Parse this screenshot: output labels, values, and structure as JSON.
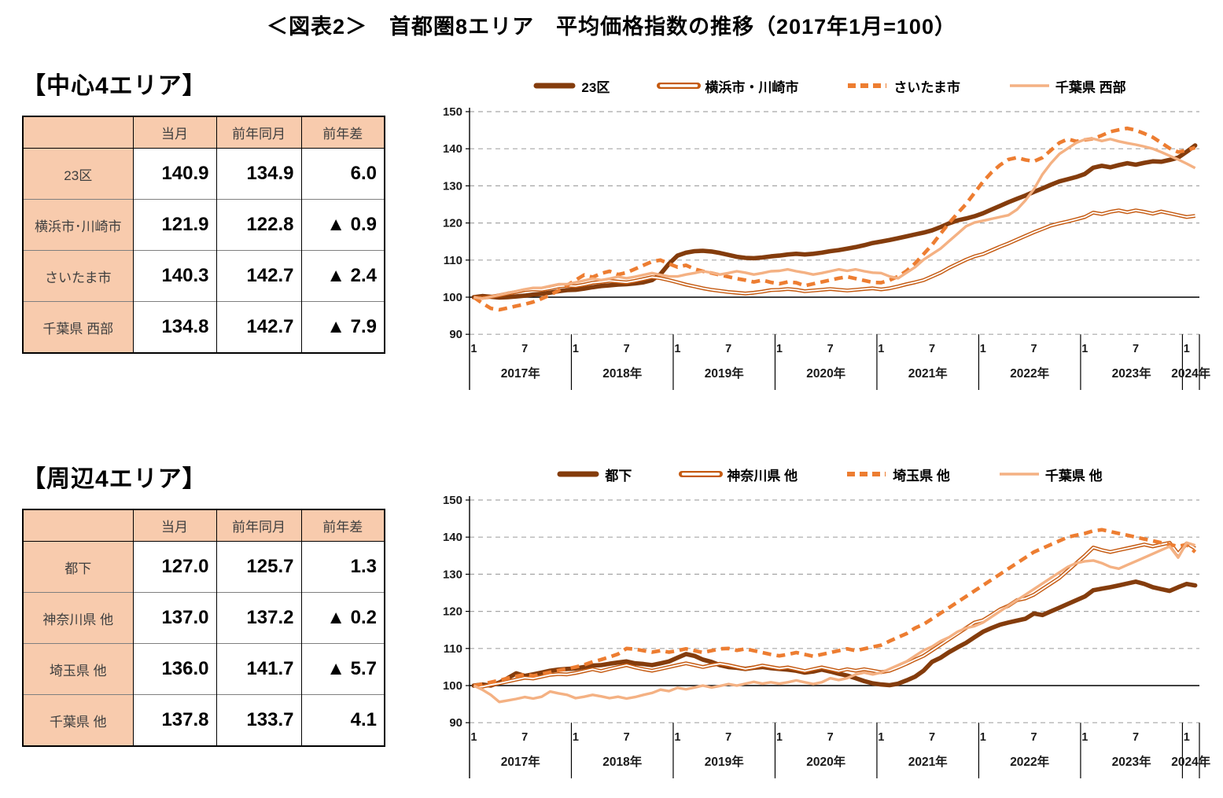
{
  "title": "＜図表2＞　首都圏8エリア　平均価格指数の推移（2017年1月=100）",
  "colors": {
    "dark_brown": "#843C0C",
    "mid_orange": "#C55A11",
    "bright_orange": "#ED7D31",
    "light_peach": "#F4B183",
    "table_header_bg": "#F8CBAD",
    "gridline": "#A6A6A6"
  },
  "sections": [
    {
      "heading": "【中心4エリア】",
      "table": {
        "headers": [
          "",
          "当月",
          "前年同月",
          "前年差"
        ],
        "rows": [
          {
            "label": "23区",
            "current": "140.9",
            "prev_year": "134.9",
            "diff": "6.0"
          },
          {
            "label": "横浜市･川崎市",
            "current": "121.9",
            "prev_year": "122.8",
            "diff": "▲ 0.9"
          },
          {
            "label": "さいたま市",
            "current": "140.3",
            "prev_year": "142.7",
            "diff": "▲ 2.4"
          },
          {
            "label": "千葉県 西部",
            "current": "134.8",
            "prev_year": "142.7",
            "diff": "▲ 7.9"
          }
        ]
      }
    },
    {
      "heading": "【周辺4エリア】",
      "table": {
        "headers": [
          "",
          "当月",
          "前年同月",
          "前年差"
        ],
        "rows": [
          {
            "label": "都下",
            "current": "127.0",
            "prev_year": "125.7",
            "diff": "1.3"
          },
          {
            "label": "神奈川県 他",
            "current": "137.0",
            "prev_year": "137.2",
            "diff": "▲ 0.2"
          },
          {
            "label": "埼玉県 他",
            "current": "136.0",
            "prev_year": "141.7",
            "diff": "▲ 5.7"
          },
          {
            "label": "千葉県 他",
            "current": "137.8",
            "prev_year": "133.7",
            "diff": "4.1"
          }
        ]
      }
    }
  ],
  "chart_data": [
    {
      "type": "line",
      "label": "中心4エリア 平均価格指数の推移",
      "x_unit": "month",
      "x_start": "2017-01",
      "x_end": "2024-02",
      "ylim": [
        90,
        150
      ],
      "yticks": [
        90,
        100,
        110,
        120,
        130,
        140,
        150
      ],
      "baseline": 100,
      "grid": "dashed-horizontal",
      "legend_position": "top",
      "month_tick_labels": [
        "1",
        "7"
      ],
      "year_labels": [
        "2017年",
        "2018年",
        "2019年",
        "2020年",
        "2021年",
        "2022年",
        "2023年",
        "2024年"
      ],
      "series": [
        {
          "name": "23区",
          "color": "#843C0C",
          "style": "thick",
          "values": [
            100,
            100.3,
            100.1,
            99.9,
            100,
            100.2,
            100.4,
            100.7,
            100.9,
            101.2,
            101.6,
            101.9,
            102,
            102.3,
            102.7,
            103,
            103.2,
            103.4,
            103.5,
            103.7,
            104,
            104.6,
            106.2,
            109,
            111.2,
            112,
            112.4,
            112.5,
            112.3,
            111.9,
            111.4,
            110.9,
            110.6,
            110.5,
            110.7,
            111,
            111.2,
            111.5,
            111.7,
            111.5,
            111.7,
            112,
            112.4,
            112.7,
            113.1,
            113.5,
            114,
            114.6,
            115,
            115.4,
            115.9,
            116.4,
            116.9,
            117.4,
            118,
            118.9,
            119.9,
            120.7,
            121.2,
            121.8,
            122.6,
            123.6,
            124.6,
            125.6,
            126.5,
            127.4,
            128.4,
            129.3,
            130.3,
            131.2,
            131.8,
            132.4,
            133.2,
            134.9,
            135.4,
            135,
            135.6,
            136.1,
            135.7,
            136.2,
            136.6,
            136.5,
            137,
            137.6,
            139.2,
            140.9
          ]
        },
        {
          "name": "横浜市・川崎市",
          "color": "#C55A11",
          "style": "double",
          "values": [
            100,
            99.8,
            100.1,
            100.5,
            101,
            101.4,
            101.9,
            102.1,
            102,
            102.4,
            102.9,
            103.1,
            103,
            103.4,
            103.9,
            104.1,
            104.4,
            104.2,
            104,
            104.4,
            104.9,
            105.4,
            105.1,
            104.6,
            104,
            103.4,
            102.9,
            102.4,
            102,
            101.7,
            101.4,
            101.2,
            101,
            101.2,
            101.5,
            101.9,
            102,
            102.2,
            102,
            101.6,
            101.8,
            102,
            102.2,
            102,
            101.8,
            102,
            102.2,
            102.4,
            102.1,
            102.4,
            102.9,
            103.5,
            104,
            104.6,
            105.6,
            106.6,
            107.9,
            109,
            110.1,
            111,
            111.6,
            112.6,
            113.6,
            114.5,
            115.5,
            116.5,
            117.5,
            118.4,
            119.3,
            119.9,
            120.4,
            121,
            121.6,
            122.8,
            122.4,
            123,
            123.4,
            122.9,
            123.4,
            123,
            122.5,
            123.1,
            122.6,
            122.1,
            121.6,
            121.9
          ]
        },
        {
          "name": "さいたま市",
          "color": "#ED7D31",
          "style": "dashed",
          "values": [
            100,
            98.4,
            97,
            96.6,
            97.1,
            97.6,
            98.1,
            98.7,
            99.6,
            100.6,
            101.8,
            103.2,
            104.6,
            106,
            105.4,
            106.4,
            107,
            106.1,
            106.6,
            107.6,
            108.6,
            109.6,
            110,
            109,
            108.1,
            108.6,
            107.6,
            107,
            106.5,
            106,
            105.5,
            105,
            104.6,
            104.1,
            104.6,
            104,
            103.6,
            104.1,
            103.9,
            103.1,
            103.6,
            104.1,
            104.6,
            105.1,
            105.5,
            105,
            104.5,
            104,
            103.9,
            104.6,
            105.6,
            107.1,
            109.1,
            111.6,
            114.1,
            117.1,
            120,
            122.6,
            125.1,
            128.1,
            131.1,
            133.6,
            135.6,
            137.1,
            137.6,
            137,
            136.6,
            137.6,
            139.6,
            141.6,
            142.6,
            142,
            142.4,
            142.7,
            143.6,
            144.6,
            145.1,
            145.5,
            145,
            144.1,
            143.1,
            141.6,
            140.1,
            139.1,
            139.6,
            140.3
          ]
        },
        {
          "name": "千葉県 西部",
          "color": "#F4B183",
          "style": "thin",
          "values": [
            100,
            99.6,
            100.1,
            100.6,
            101.1,
            101.6,
            102.1,
            102.5,
            102.5,
            103,
            103.5,
            103.5,
            104,
            104.5,
            105,
            104.6,
            105,
            105.5,
            105.1,
            105.5,
            106,
            106.5,
            106,
            105.6,
            105.6,
            106.1,
            106.5,
            107,
            106.6,
            106.1,
            106.5,
            107,
            106.6,
            106.1,
            106.5,
            107,
            107.1,
            107.5,
            107,
            106.6,
            106.1,
            106.5,
            107,
            107.5,
            107.1,
            107.5,
            107,
            106.6,
            106.5,
            105.6,
            105.1,
            106.6,
            108.1,
            110.1,
            111.6,
            113.1,
            115.1,
            117.1,
            119.1,
            120.1,
            120.6,
            121.1,
            121.6,
            122.1,
            123.6,
            126.1,
            129.1,
            133.1,
            136.1,
            138.6,
            140.1,
            141.6,
            142.5,
            142.7,
            142.1,
            142.6,
            142,
            141.5,
            141.1,
            140.6,
            140,
            139.1,
            138.1,
            137.1,
            136,
            134.8
          ]
        }
      ]
    },
    {
      "type": "line",
      "label": "周辺4エリア 平均価格指数の推移",
      "x_unit": "month",
      "x_start": "2017-01",
      "x_end": "2024-02",
      "ylim": [
        90,
        150
      ],
      "yticks": [
        90,
        100,
        110,
        120,
        130,
        140,
        150
      ],
      "baseline": 100,
      "grid": "dashed-horizontal",
      "legend_position": "top",
      "month_tick_labels": [
        "1",
        "7"
      ],
      "year_labels": [
        "2017年",
        "2018年",
        "2019年",
        "2020年",
        "2021年",
        "2022年",
        "2023年",
        "2024年"
      ],
      "series": [
        {
          "name": "都下",
          "color": "#843C0C",
          "style": "thick",
          "values": [
            100,
            100.3,
            100,
            100.8,
            102,
            103.3,
            102.6,
            103,
            103.5,
            104,
            104.3,
            104.5,
            104.6,
            105,
            105.4,
            105.5,
            105.9,
            106.2,
            106.5,
            106,
            105.8,
            105.5,
            106,
            106.5,
            107.5,
            108.5,
            108,
            107,
            106.4,
            105.5,
            105,
            104.8,
            104.5,
            104.8,
            105,
            104.7,
            104.5,
            104.3,
            104,
            103.5,
            103.8,
            104.3,
            103.8,
            103.2,
            102.7,
            102,
            101.2,
            100.6,
            100.3,
            100.1,
            100.5,
            101.4,
            102.4,
            104,
            106.4,
            107.5,
            109,
            110.3,
            111.5,
            113,
            114.5,
            115.5,
            116.4,
            117,
            117.5,
            118,
            119.4,
            119,
            120,
            121,
            122,
            123,
            124,
            125.7,
            126.1,
            126.5,
            127,
            127.5,
            128,
            127.4,
            126.5,
            126,
            125.5,
            126.5,
            127.4,
            127
          ]
        },
        {
          "name": "神奈川県 他",
          "color": "#C55A11",
          "style": "double",
          "values": [
            100,
            99.7,
            100.2,
            100.6,
            101.1,
            101.6,
            102.1,
            101.9,
            102.4,
            102.9,
            103.1,
            103,
            103.4,
            103.9,
            104.4,
            103.9,
            104.5,
            105,
            105.5,
            104.9,
            104.4,
            104,
            104.5,
            105,
            105.5,
            106,
            105.5,
            105,
            105.5,
            105.9,
            105.5,
            105,
            104.5,
            104.9,
            105.4,
            105,
            104.6,
            104.9,
            104.4,
            103.9,
            104.4,
            104.9,
            104.4,
            103.9,
            104.4,
            104,
            104.4,
            104,
            103.6,
            104,
            104.9,
            105.9,
            107,
            108,
            109.5,
            111,
            112.5,
            114,
            115.5,
            117,
            117.6,
            119,
            120.5,
            121.5,
            123,
            123.5,
            124.5,
            126,
            127.5,
            129,
            131,
            133,
            135,
            137.2,
            136.5,
            136,
            136.5,
            137,
            137.5,
            138,
            137.5,
            138,
            138.5,
            135.5,
            138.3,
            137
          ]
        },
        {
          "name": "埼玉県 他",
          "color": "#ED7D31",
          "style": "dashed",
          "values": [
            100,
            100.4,
            100.9,
            101.4,
            102,
            102.5,
            103,
            102.6,
            103.1,
            103.6,
            104.1,
            104.5,
            105,
            105.6,
            106.4,
            107,
            107.7,
            108.5,
            110,
            109.8,
            109.4,
            109,
            109.4,
            109,
            109.4,
            109.9,
            109.4,
            108.9,
            109.4,
            109.9,
            110,
            109.5,
            109.9,
            109.4,
            108.9,
            108.4,
            108,
            108.4,
            108.9,
            108.4,
            107.9,
            108.4,
            108.9,
            109.4,
            109.9,
            109.4,
            109.9,
            110.4,
            110.9,
            112,
            113,
            114,
            115.5,
            116.5,
            118,
            119.5,
            121,
            122.5,
            124,
            125.5,
            127,
            128.5,
            130,
            131.5,
            133,
            134.5,
            136,
            137,
            138,
            139,
            140,
            140.5,
            141,
            141.7,
            142,
            141.5,
            141,
            140.5,
            140,
            139.5,
            139,
            138.5,
            138,
            137.5,
            138,
            136
          ]
        },
        {
          "name": "千葉県 他",
          "color": "#F4B183",
          "style": "thin",
          "values": [
            100,
            98.9,
            97.5,
            95.6,
            96,
            96.4,
            96.9,
            96.5,
            97,
            98.4,
            97.9,
            97.5,
            96.6,
            97,
            97.5,
            97.1,
            96.6,
            97,
            96.5,
            96.9,
            97.5,
            98,
            98.9,
            98.5,
            99.4,
            99,
            99.5,
            100,
            99.5,
            99.9,
            100.4,
            100,
            100.5,
            101,
            100.5,
            100.9,
            100.5,
            100.9,
            101.4,
            100.9,
            100.4,
            100.9,
            102,
            101.5,
            102,
            103,
            103.5,
            103,
            103.5,
            104.5,
            105.5,
            106.5,
            108,
            109.5,
            110.5,
            112,
            113,
            114.5,
            115.5,
            116,
            117,
            118.5,
            120,
            121.5,
            123,
            124.5,
            126,
            127.5,
            129,
            130.5,
            132,
            133,
            133.5,
            133.7,
            133,
            132,
            131.5,
            132.5,
            133.5,
            134.5,
            135.5,
            136.5,
            137.5,
            134.5,
            138.5,
            137.8
          ]
        }
      ]
    }
  ]
}
